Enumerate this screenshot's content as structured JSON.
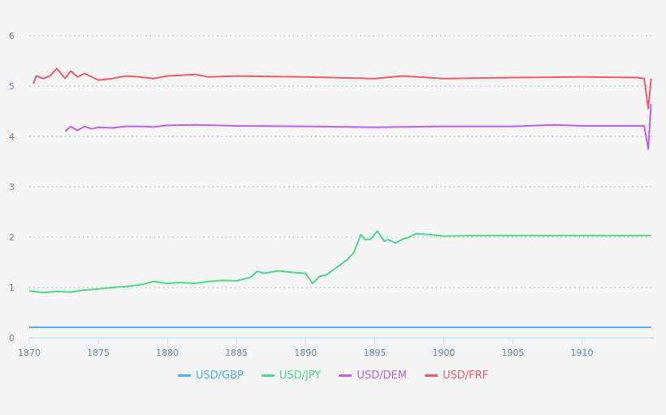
{
  "chart_data": {
    "type": "line",
    "title": "",
    "xlabel": "",
    "ylabel": "",
    "xlim": [
      1870,
      1915.2
    ],
    "ylim": [
      0,
      6
    ],
    "x_ticks": [
      1870,
      1875,
      1880,
      1885,
      1890,
      1895,
      1900,
      1905,
      1910
    ],
    "y_ticks": [
      0,
      1,
      2,
      3,
      4,
      5,
      6
    ],
    "grid": {
      "y": true,
      "x": false,
      "style": "dotted"
    },
    "legend_position": "bottom",
    "series": [
      {
        "name": "USD/GBP",
        "color": "#4fb3e8",
        "x": [
          1870,
          1875,
          1880,
          1885,
          1890,
          1895,
          1900,
          1905,
          1910,
          1915
        ],
        "values": [
          0.21,
          0.21,
          0.21,
          0.21,
          0.21,
          0.21,
          0.21,
          0.21,
          0.21,
          0.21
        ]
      },
      {
        "name": "USD/JPY",
        "color": "#4fd88f",
        "x": [
          1870,
          1871,
          1872,
          1873,
          1874,
          1875,
          1876,
          1877,
          1878,
          1879,
          1880,
          1881,
          1882,
          1883,
          1884,
          1885,
          1886,
          1886.5,
          1887,
          1888,
          1889,
          1890,
          1890.5,
          1891,
          1891.5,
          1892,
          1893,
          1893.5,
          1894,
          1894.3,
          1894.7,
          1895.2,
          1895.7,
          1896,
          1896.5,
          1897,
          1897.5,
          1898,
          1899,
          1900,
          1902,
          1905,
          1910,
          1915
        ],
        "values": [
          0.93,
          0.9,
          0.92,
          0.91,
          0.95,
          0.97,
          1.0,
          1.02,
          1.05,
          1.12,
          1.08,
          1.1,
          1.08,
          1.12,
          1.14,
          1.13,
          1.2,
          1.32,
          1.28,
          1.33,
          1.3,
          1.28,
          1.08,
          1.22,
          1.25,
          1.35,
          1.55,
          1.7,
          2.05,
          1.95,
          1.96,
          2.12,
          1.92,
          1.95,
          1.88,
          1.96,
          2.0,
          2.07,
          2.05,
          2.02,
          2.03,
          2.03,
          2.03,
          2.03
        ]
      },
      {
        "name": "USD/DEM",
        "color": "#c45ee8",
        "x": [
          1872.6,
          1873,
          1873.5,
          1874,
          1874.5,
          1875,
          1876,
          1877,
          1878,
          1879,
          1880,
          1882,
          1885,
          1890,
          1895,
          1900,
          1905,
          1908,
          1910,
          1914,
          1914.5,
          1914.8,
          1915
        ],
        "values": [
          4.1,
          4.2,
          4.12,
          4.2,
          4.15,
          4.18,
          4.17,
          4.2,
          4.2,
          4.19,
          4.22,
          4.23,
          4.21,
          4.2,
          4.18,
          4.2,
          4.2,
          4.23,
          4.21,
          4.21,
          4.21,
          3.75,
          4.65
        ]
      },
      {
        "name": "USD/FRF",
        "color": "#f05d6a",
        "x": [
          1870.3,
          1870.5,
          1871,
          1871.5,
          1872,
          1872.3,
          1872.6,
          1873,
          1873.5,
          1874,
          1875,
          1876,
          1877,
          1878,
          1879,
          1880,
          1882,
          1883,
          1885,
          1890,
          1895,
          1897,
          1900,
          1905,
          1910,
          1914,
          1914.5,
          1914.8,
          1915
        ],
        "values": [
          5.05,
          5.2,
          5.15,
          5.2,
          5.35,
          5.25,
          5.15,
          5.3,
          5.18,
          5.25,
          5.12,
          5.15,
          5.2,
          5.18,
          5.15,
          5.2,
          5.23,
          5.18,
          5.2,
          5.18,
          5.15,
          5.2,
          5.15,
          5.17,
          5.18,
          5.17,
          5.15,
          4.55,
          5.15
        ]
      }
    ]
  },
  "legend": [
    {
      "label": "USD/GBP",
      "color": "#4fb3e8"
    },
    {
      "label": "USD/JPY",
      "color": "#4fd88f"
    },
    {
      "label": "USD/DEM",
      "color": "#c45ee8"
    },
    {
      "label": "USD/FRF",
      "color": "#f05d6a"
    }
  ],
  "colors": {
    "background": "#f5f5f5",
    "tick_text": "#6b8aa8",
    "grid": "#c5d3e0",
    "axis": "#d4dfea"
  }
}
